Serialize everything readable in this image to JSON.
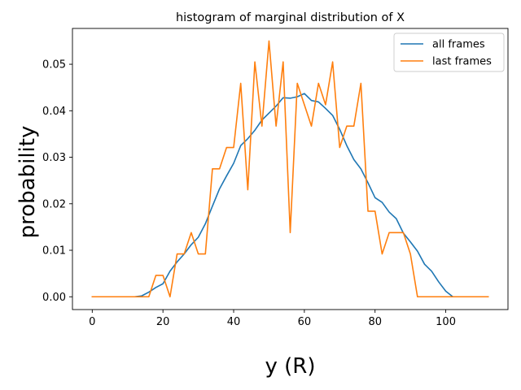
{
  "chart_data": {
    "type": "line",
    "title": "histogram of marginal distribution of X",
    "xlabel": "y (R)",
    "ylabel": "probability",
    "xlim": [
      -5.6,
      117.6
    ],
    "ylim": [
      -0.00275,
      0.0577
    ],
    "xticks": [
      0,
      20,
      40,
      60,
      80,
      100
    ],
    "yticks": [
      0.0,
      0.01,
      0.02,
      0.03,
      0.04,
      0.05
    ],
    "xtick_labels": [
      "0",
      "20",
      "40",
      "60",
      "80",
      "100"
    ],
    "ytick_labels": [
      "0.00",
      "0.01",
      "0.02",
      "0.03",
      "0.04",
      "0.05"
    ],
    "grid": false,
    "legend_position": "top-right",
    "series": [
      {
        "name": "all frames",
        "color": "#1f77b4",
        "x": [
          0,
          2,
          4,
          6,
          8,
          10,
          12,
          14,
          16,
          18,
          20,
          22,
          24,
          26,
          28,
          30,
          32,
          34,
          36,
          38,
          40,
          42,
          44,
          46,
          48,
          50,
          52,
          54,
          56,
          58,
          60,
          62,
          64,
          66,
          68,
          70,
          72,
          74,
          76,
          78,
          80,
          82,
          84,
          86,
          88,
          90,
          92,
          94,
          96,
          98,
          100,
          102,
          104,
          106,
          108,
          110,
          112
        ],
        "values": [
          0,
          0,
          0,
          0,
          0,
          0,
          0,
          0.0002,
          0.001,
          0.002,
          0.0028,
          0.0055,
          0.0075,
          0.0092,
          0.0112,
          0.0128,
          0.0157,
          0.0195,
          0.0232,
          0.026,
          0.0287,
          0.0325,
          0.034,
          0.0358,
          0.038,
          0.0395,
          0.041,
          0.0428,
          0.0427,
          0.043,
          0.0437,
          0.0422,
          0.0419,
          0.0405,
          0.039,
          0.036,
          0.0325,
          0.0295,
          0.0275,
          0.0245,
          0.0213,
          0.0203,
          0.0182,
          0.0168,
          0.0137,
          0.0118,
          0.0098,
          0.007,
          0.0055,
          0.0032,
          0.0012,
          0,
          0,
          0,
          0,
          0,
          0
        ]
      },
      {
        "name": "last frames",
        "color": "#ff7f0e",
        "x": [
          0,
          2,
          4,
          6,
          8,
          10,
          12,
          14,
          16,
          18,
          20,
          22,
          24,
          26,
          28,
          30,
          32,
          34,
          36,
          38,
          40,
          42,
          44,
          46,
          48,
          50,
          52,
          54,
          56,
          58,
          60,
          62,
          64,
          66,
          68,
          70,
          72,
          74,
          76,
          78,
          80,
          82,
          84,
          86,
          88,
          90,
          92,
          94,
          96,
          98,
          100,
          102,
          104,
          106,
          108,
          110,
          112
        ],
        "values": [
          0,
          0,
          0,
          0,
          0,
          0,
          0,
          0,
          0,
          0.0046,
          0.0046,
          0,
          0.0092,
          0.0092,
          0.0138,
          0.0092,
          0.0092,
          0.0275,
          0.0275,
          0.0321,
          0.0321,
          0.0459,
          0.023,
          0.0505,
          0.0367,
          0.055,
          0.0367,
          0.0505,
          0.0138,
          0.0459,
          0.0413,
          0.0367,
          0.0459,
          0.0413,
          0.0505,
          0.0321,
          0.0367,
          0.0367,
          0.0459,
          0.0184,
          0.0184,
          0.0092,
          0.0138,
          0.0138,
          0.0138,
          0.0092,
          0,
          0,
          0,
          0,
          0,
          0,
          0,
          0,
          0,
          0,
          0
        ]
      }
    ]
  }
}
